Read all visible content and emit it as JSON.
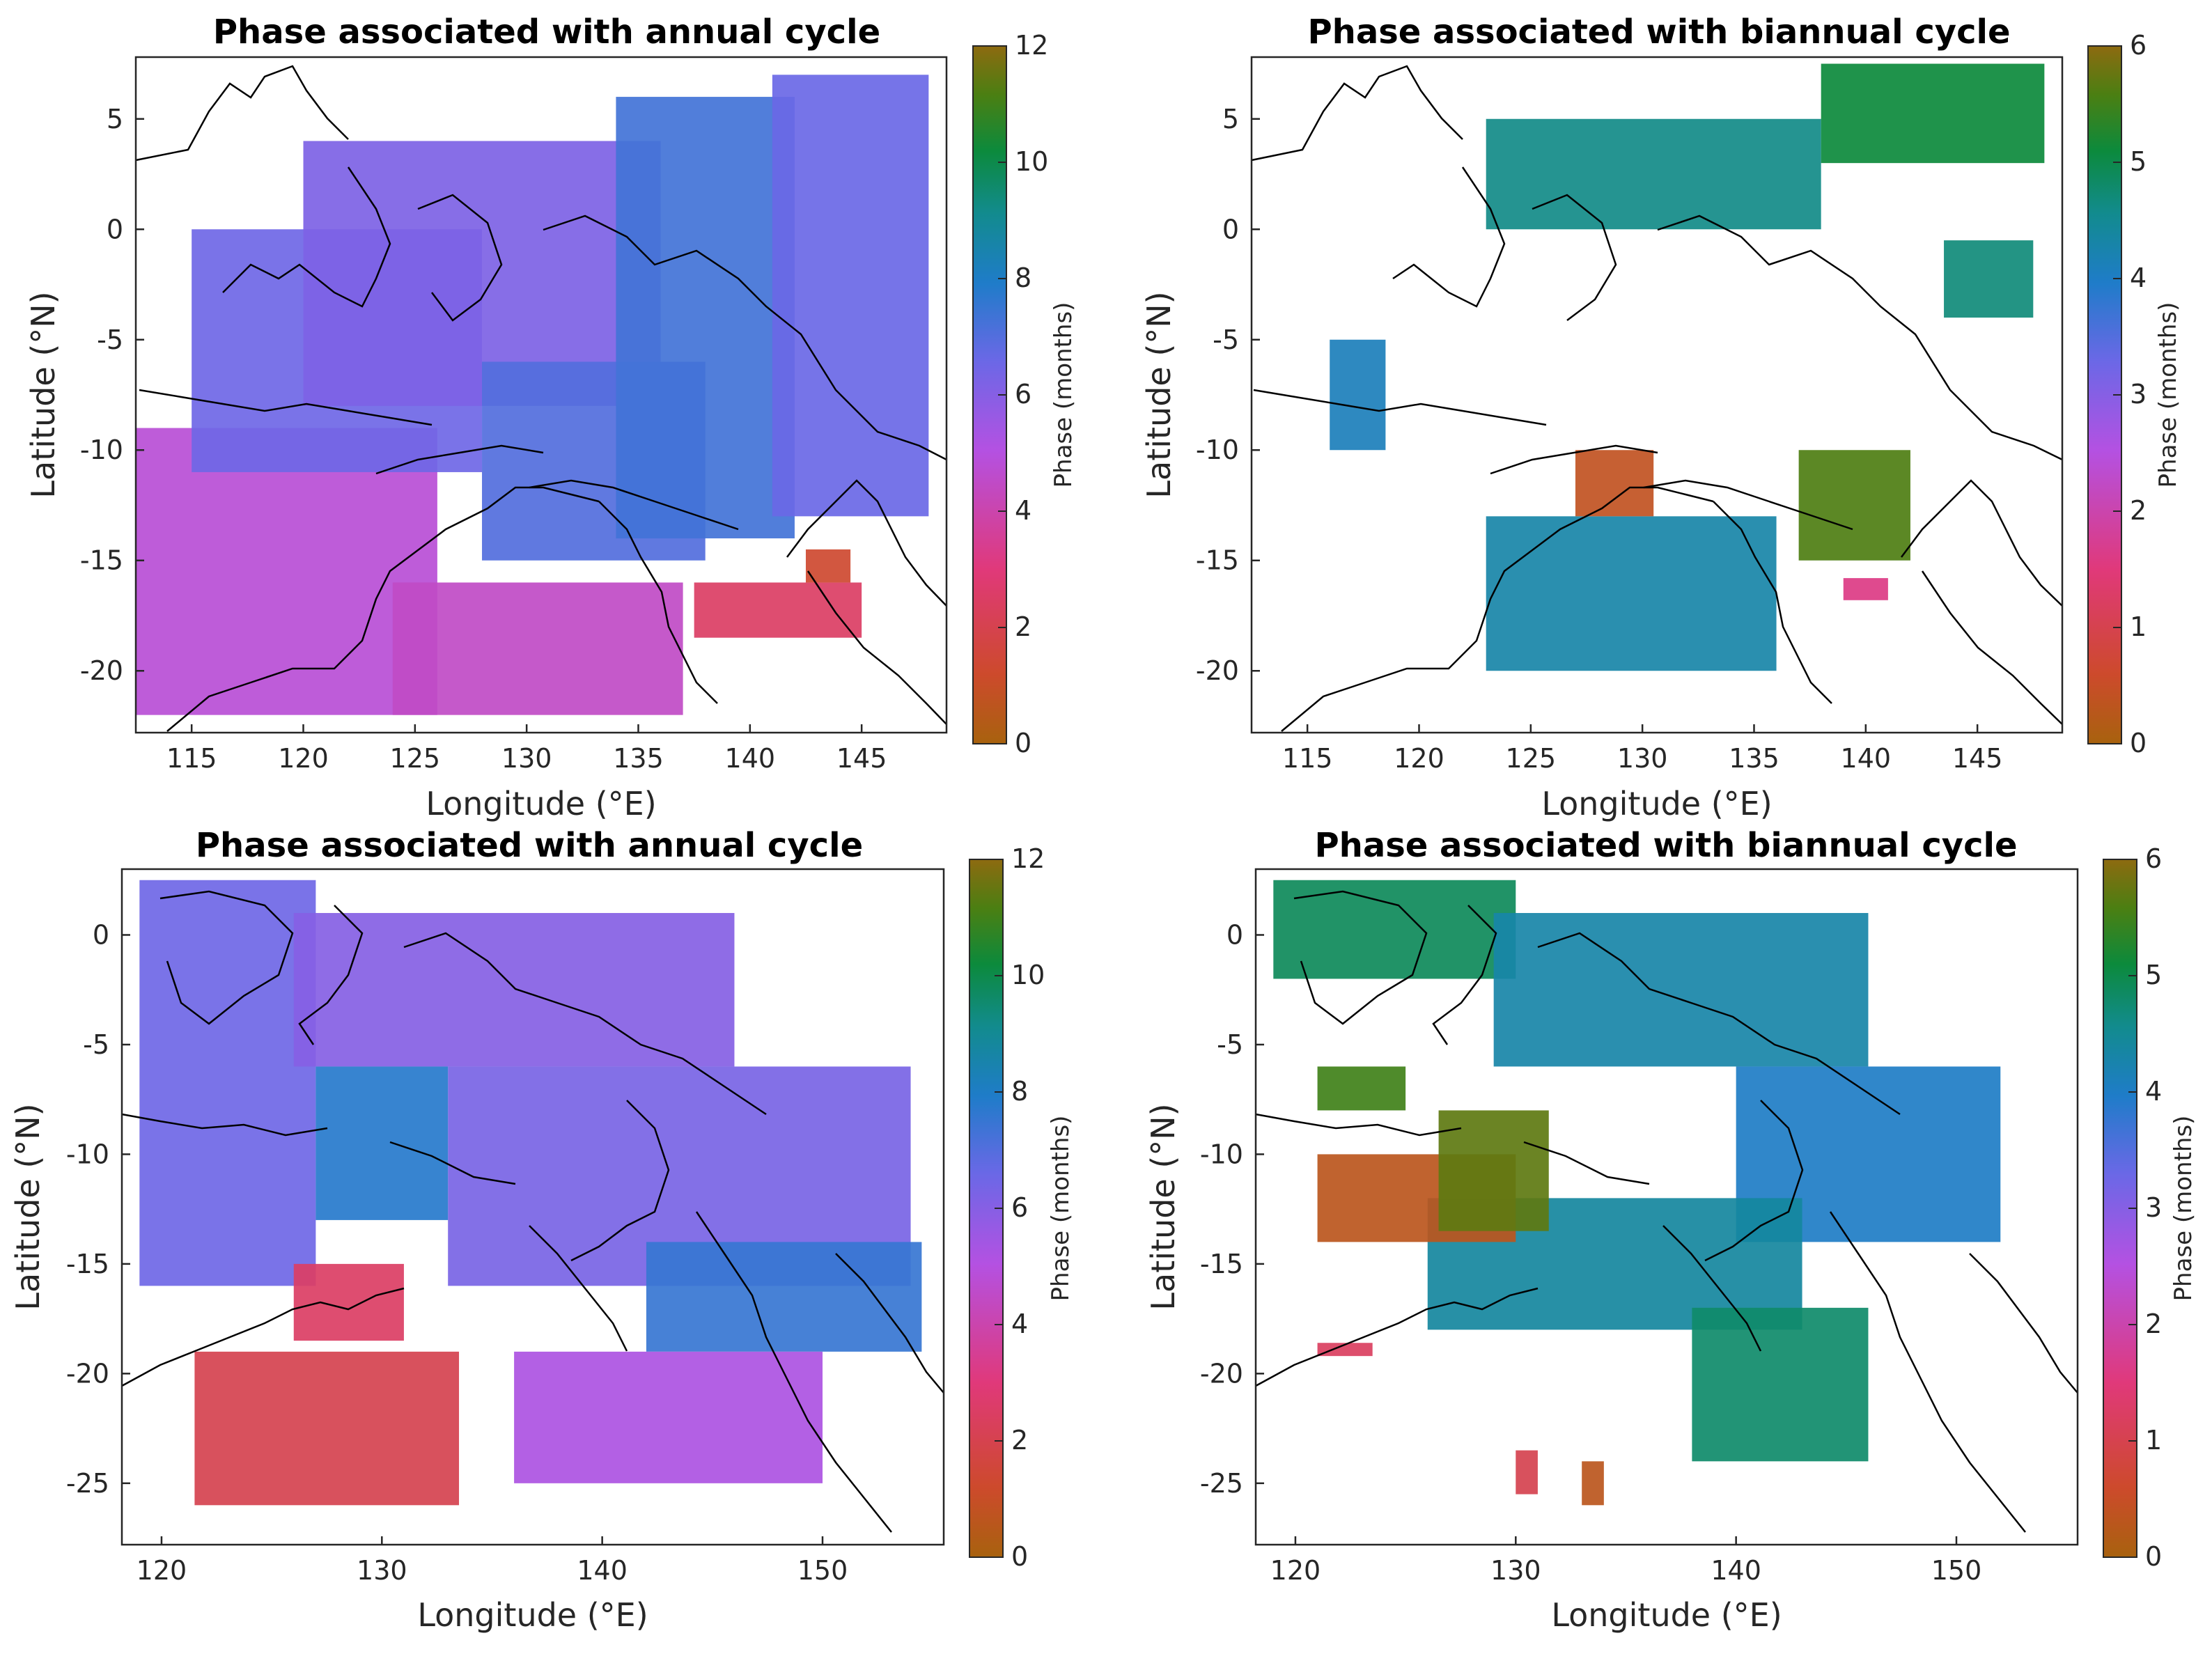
{
  "figure": "Ocean phase maps (annual and biannual cycle)",
  "chart_data": [
    {
      "type": "heatmap",
      "title": "Phase associated with annual cycle",
      "xlabel": "Longitude (°E)",
      "ylabel": "Latitude (°N)",
      "colorbar_label": "Phase (months)",
      "xlim": [
        112.5,
        148.8
      ],
      "ylim": [
        -22.8,
        7.8
      ],
      "xticks": [
        115,
        120,
        125,
        130,
        135,
        140,
        145
      ],
      "yticks": [
        5,
        0,
        -5,
        -10,
        -15,
        -20
      ],
      "clim": [
        0,
        12
      ],
      "cticks": [
        0,
        2,
        4,
        6,
        8,
        10,
        12
      ],
      "grid": false,
      "regions": [
        {
          "lon0": 112.5,
          "lon1": 126.0,
          "lat0": -22.0,
          "lat1": -9.0,
          "phase": 4.8
        },
        {
          "lon0": 124.0,
          "lon1": 137.0,
          "lat0": -22.0,
          "lat1": -16.0,
          "phase": 4.5
        },
        {
          "lon0": 115.0,
          "lon1": 128.0,
          "lat0": -11.0,
          "lat1": 0.0,
          "phase": 6.5
        },
        {
          "lon0": 120.0,
          "lon1": 136.0,
          "lat0": -8.0,
          "lat1": 4.0,
          "phase": 6.2
        },
        {
          "lon0": 128.0,
          "lon1": 138.0,
          "lat0": -15.0,
          "lat1": -6.0,
          "phase": 7.0
        },
        {
          "lon0": 134.0,
          "lon1": 142.0,
          "lat0": -14.0,
          "lat1": 6.0,
          "phase": 7.3
        },
        {
          "lon0": 141.0,
          "lon1": 148.0,
          "lat0": -13.0,
          "lat1": 7.0,
          "phase": 6.6
        },
        {
          "lon0": 137.5,
          "lon1": 145.0,
          "lat0": -18.5,
          "lat1": -16.0,
          "phase": 2.5
        },
        {
          "lon0": 142.5,
          "lon1": 144.5,
          "lat0": -16.0,
          "lat1": -14.5,
          "phase": 1.3
        }
      ]
    },
    {
      "type": "heatmap",
      "title": "Phase associated with biannual cycle",
      "xlabel": "Longitude (°E)",
      "ylabel": "Latitude (°N)",
      "colorbar_label": "Phase (months)",
      "xlim": [
        112.5,
        148.8
      ],
      "ylim": [
        -22.8,
        7.8
      ],
      "xticks": [
        115,
        120,
        125,
        130,
        135,
        140,
        145
      ],
      "yticks": [
        5,
        0,
        -5,
        -10,
        -15,
        -20
      ],
      "clim": [
        0,
        6
      ],
      "cticks": [
        0,
        1,
        2,
        3,
        4,
        5,
        6
      ],
      "grid": false,
      "regions": [
        {
          "lon0": 123.0,
          "lon1": 138.0,
          "lat0": 0.0,
          "lat1": 5.0,
          "phase": 4.6
        },
        {
          "lon0": 138.0,
          "lon1": 148.0,
          "lat0": 3.0,
          "lat1": 7.5,
          "phase": 5.1
        },
        {
          "lon0": 143.5,
          "lon1": 147.5,
          "lat0": -4.0,
          "lat1": -0.5,
          "phase": 4.7
        },
        {
          "lon0": 123.0,
          "lon1": 136.0,
          "lat0": -20.0,
          "lat1": -13.0,
          "phase": 4.3
        },
        {
          "lon0": 137.0,
          "lon1": 142.0,
          "lat0": -15.0,
          "lat1": -10.0,
          "phase": 5.6
        },
        {
          "lon0": 127.0,
          "lon1": 130.5,
          "lat0": -13.0,
          "lat1": -10.0,
          "phase": 0.4
        },
        {
          "lon0": 139.0,
          "lon1": 141.0,
          "lat0": -16.8,
          "lat1": -15.8,
          "phase": 1.6
        },
        {
          "lon0": 116.0,
          "lon1": 118.5,
          "lat0": -10.0,
          "lat1": -5.0,
          "phase": 4.1
        }
      ]
    },
    {
      "type": "heatmap",
      "title": "Phase associated with annual cycle",
      "xlabel": "Longitude (°E)",
      "ylabel": "Latitude (°N)",
      "colorbar_label": "Phase (months)",
      "xlim": [
        118.2,
        155.5
      ],
      "ylim": [
        -27.8,
        3.0
      ],
      "xticks": [
        120,
        130,
        140,
        150
      ],
      "yticks": [
        0,
        -5,
        -10,
        -15,
        -20,
        -25
      ],
      "clim": [
        0,
        12
      ],
      "cticks": [
        0,
        2,
        4,
        6,
        8,
        10,
        12
      ],
      "grid": false,
      "regions": [
        {
          "lon0": 119.0,
          "lon1": 127.0,
          "lat0": -16.0,
          "lat1": 2.5,
          "phase": 6.5
        },
        {
          "lon0": 126.0,
          "lon1": 146.0,
          "lat0": -6.0,
          "lat1": 1.0,
          "phase": 6.0
        },
        {
          "lon0": 133.0,
          "lon1": 154.0,
          "lat0": -16.0,
          "lat1": -6.0,
          "phase": 6.3
        },
        {
          "lon0": 142.0,
          "lon1": 154.5,
          "lat0": -19.0,
          "lat1": -14.0,
          "phase": 7.5
        },
        {
          "lon0": 136.0,
          "lon1": 150.0,
          "lat0": -25.0,
          "lat1": -19.0,
          "phase": 5.2
        },
        {
          "lon0": 127.0,
          "lon1": 133.0,
          "lat0": -13.0,
          "lat1": -6.0,
          "phase": 7.8
        },
        {
          "lon0": 121.5,
          "lon1": 133.5,
          "lat0": -26.0,
          "lat1": -19.0,
          "phase": 2.0
        },
        {
          "lon0": 126.0,
          "lon1": 131.0,
          "lat0": -18.5,
          "lat1": -15.0,
          "phase": 2.5
        }
      ]
    },
    {
      "type": "heatmap",
      "title": "Phase associated with biannual cycle",
      "xlabel": "Longitude (°E)",
      "ylabel": "Latitude (°N)",
      "colorbar_label": "Phase (months)",
      "xlim": [
        118.2,
        155.5
      ],
      "ylim": [
        -27.8,
        3.0
      ],
      "xticks": [
        120,
        130,
        140,
        150
      ],
      "yticks": [
        0,
        -5,
        -10,
        -15,
        -20,
        -25
      ],
      "clim": [
        0,
        6
      ],
      "cticks": [
        0,
        1,
        2,
        3,
        4,
        5,
        6
      ],
      "grid": false,
      "regions": [
        {
          "lon0": 119.0,
          "lon1": 130.0,
          "lat0": -2.0,
          "lat1": 2.5,
          "phase": 4.9
        },
        {
          "lon0": 129.0,
          "lon1": 146.0,
          "lat0": -6.0,
          "lat1": 1.0,
          "phase": 4.3
        },
        {
          "lon0": 140.0,
          "lon1": 152.0,
          "lat0": -14.0,
          "lat1": -6.0,
          "phase": 4.0
        },
        {
          "lon0": 126.0,
          "lon1": 143.0,
          "lat0": -18.0,
          "lat1": -12.0,
          "phase": 4.4
        },
        {
          "lon0": 138.0,
          "lon1": 146.0,
          "lat0": -24.0,
          "lat1": -17.0,
          "phase": 4.8
        },
        {
          "lon0": 121.0,
          "lon1": 130.0,
          "lat0": -14.0,
          "lat1": -10.0,
          "phase": 0.3
        },
        {
          "lon0": 121.0,
          "lon1": 125.0,
          "lat0": -8.0,
          "lat1": -6.0,
          "phase": 5.5
        },
        {
          "lon0": 126.5,
          "lon1": 131.5,
          "lat0": -13.5,
          "lat1": -8.0,
          "phase": 5.7
        },
        {
          "lon0": 121.0,
          "lon1": 123.5,
          "lat0": -19.2,
          "lat1": -18.6,
          "phase": 1.2
        },
        {
          "lon0": 130.0,
          "lon1": 131.0,
          "lat0": -25.5,
          "lat1": -23.5,
          "phase": 1.0
        },
        {
          "lon0": 133.0,
          "lon1": 134.0,
          "lat0": -26.0,
          "lat1": -24.0,
          "phase": 0.3
        }
      ]
    }
  ]
}
